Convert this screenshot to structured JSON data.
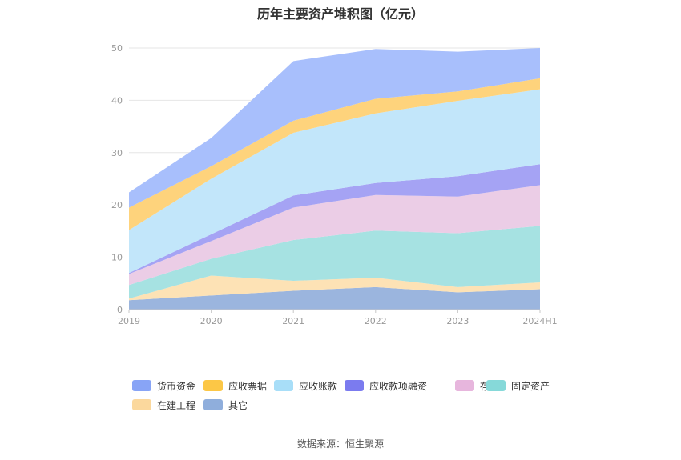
{
  "title": "历年主要资产堆积图（亿元）",
  "source": "数据来源：恒生聚源",
  "chart_data": {
    "type": "area",
    "stacked": true,
    "title": "历年主要资产堆积图（亿元）",
    "categories": [
      "2019",
      "2020",
      "2021",
      "2022",
      "2023",
      "2024H1"
    ],
    "ylim": [
      0,
      50
    ],
    "yticks": [
      0,
      10,
      20,
      30,
      40,
      50
    ],
    "grid": true,
    "legend_position": "bottom",
    "series": [
      {
        "name": "其它",
        "color": "#9bb5de",
        "values": [
          1.8,
          2.7,
          3.6,
          4.3,
          3.3,
          3.9
        ]
      },
      {
        "name": "在建工程",
        "color": "#fde2b5",
        "values": [
          0.3,
          3.8,
          1.9,
          1.8,
          1.0,
          1.3
        ]
      },
      {
        "name": "固定资产",
        "color": "#a6e2e2",
        "values": [
          2.6,
          3.2,
          7.8,
          9.0,
          10.3,
          10.8
        ]
      },
      {
        "name": "存货",
        "color": "#ebcde6",
        "values": [
          2.1,
          3.4,
          6.2,
          6.8,
          7.0,
          7.8
        ]
      },
      {
        "name": "应收款项融资",
        "color": "#a5a3f4",
        "values": [
          0.2,
          1.3,
          2.3,
          2.3,
          3.9,
          4.0
        ]
      },
      {
        "name": "应收账款",
        "color": "#c2e6fa",
        "values": [
          8.2,
          10.6,
          12.0,
          13.3,
          14.4,
          14.3
        ]
      },
      {
        "name": "应收票据",
        "color": "#fed37c",
        "values": [
          4.3,
          2.4,
          2.3,
          2.8,
          1.8,
          2.1
        ]
      },
      {
        "name": "货币资金",
        "color": "#a8bffc",
        "values": [
          2.9,
          5.4,
          11.4,
          9.5,
          7.6,
          5.8
        ]
      }
    ]
  },
  "legend": [
    {
      "label": "货币资金",
      "color": "#88a4f6"
    },
    {
      "label": "应收票据",
      "color": "#fcc746"
    },
    {
      "label": "应收账款",
      "color": "#a8def8"
    },
    {
      "label": "应收款项融资",
      "color": "#7b7bef"
    },
    {
      "label": "存货",
      "color": "#e7b6dd"
    },
    {
      "label": "固定资产",
      "color": "#86d9d9"
    },
    {
      "label": "在建工程",
      "color": "#fbd89d"
    },
    {
      "label": "其它",
      "color": "#8faedc"
    }
  ]
}
